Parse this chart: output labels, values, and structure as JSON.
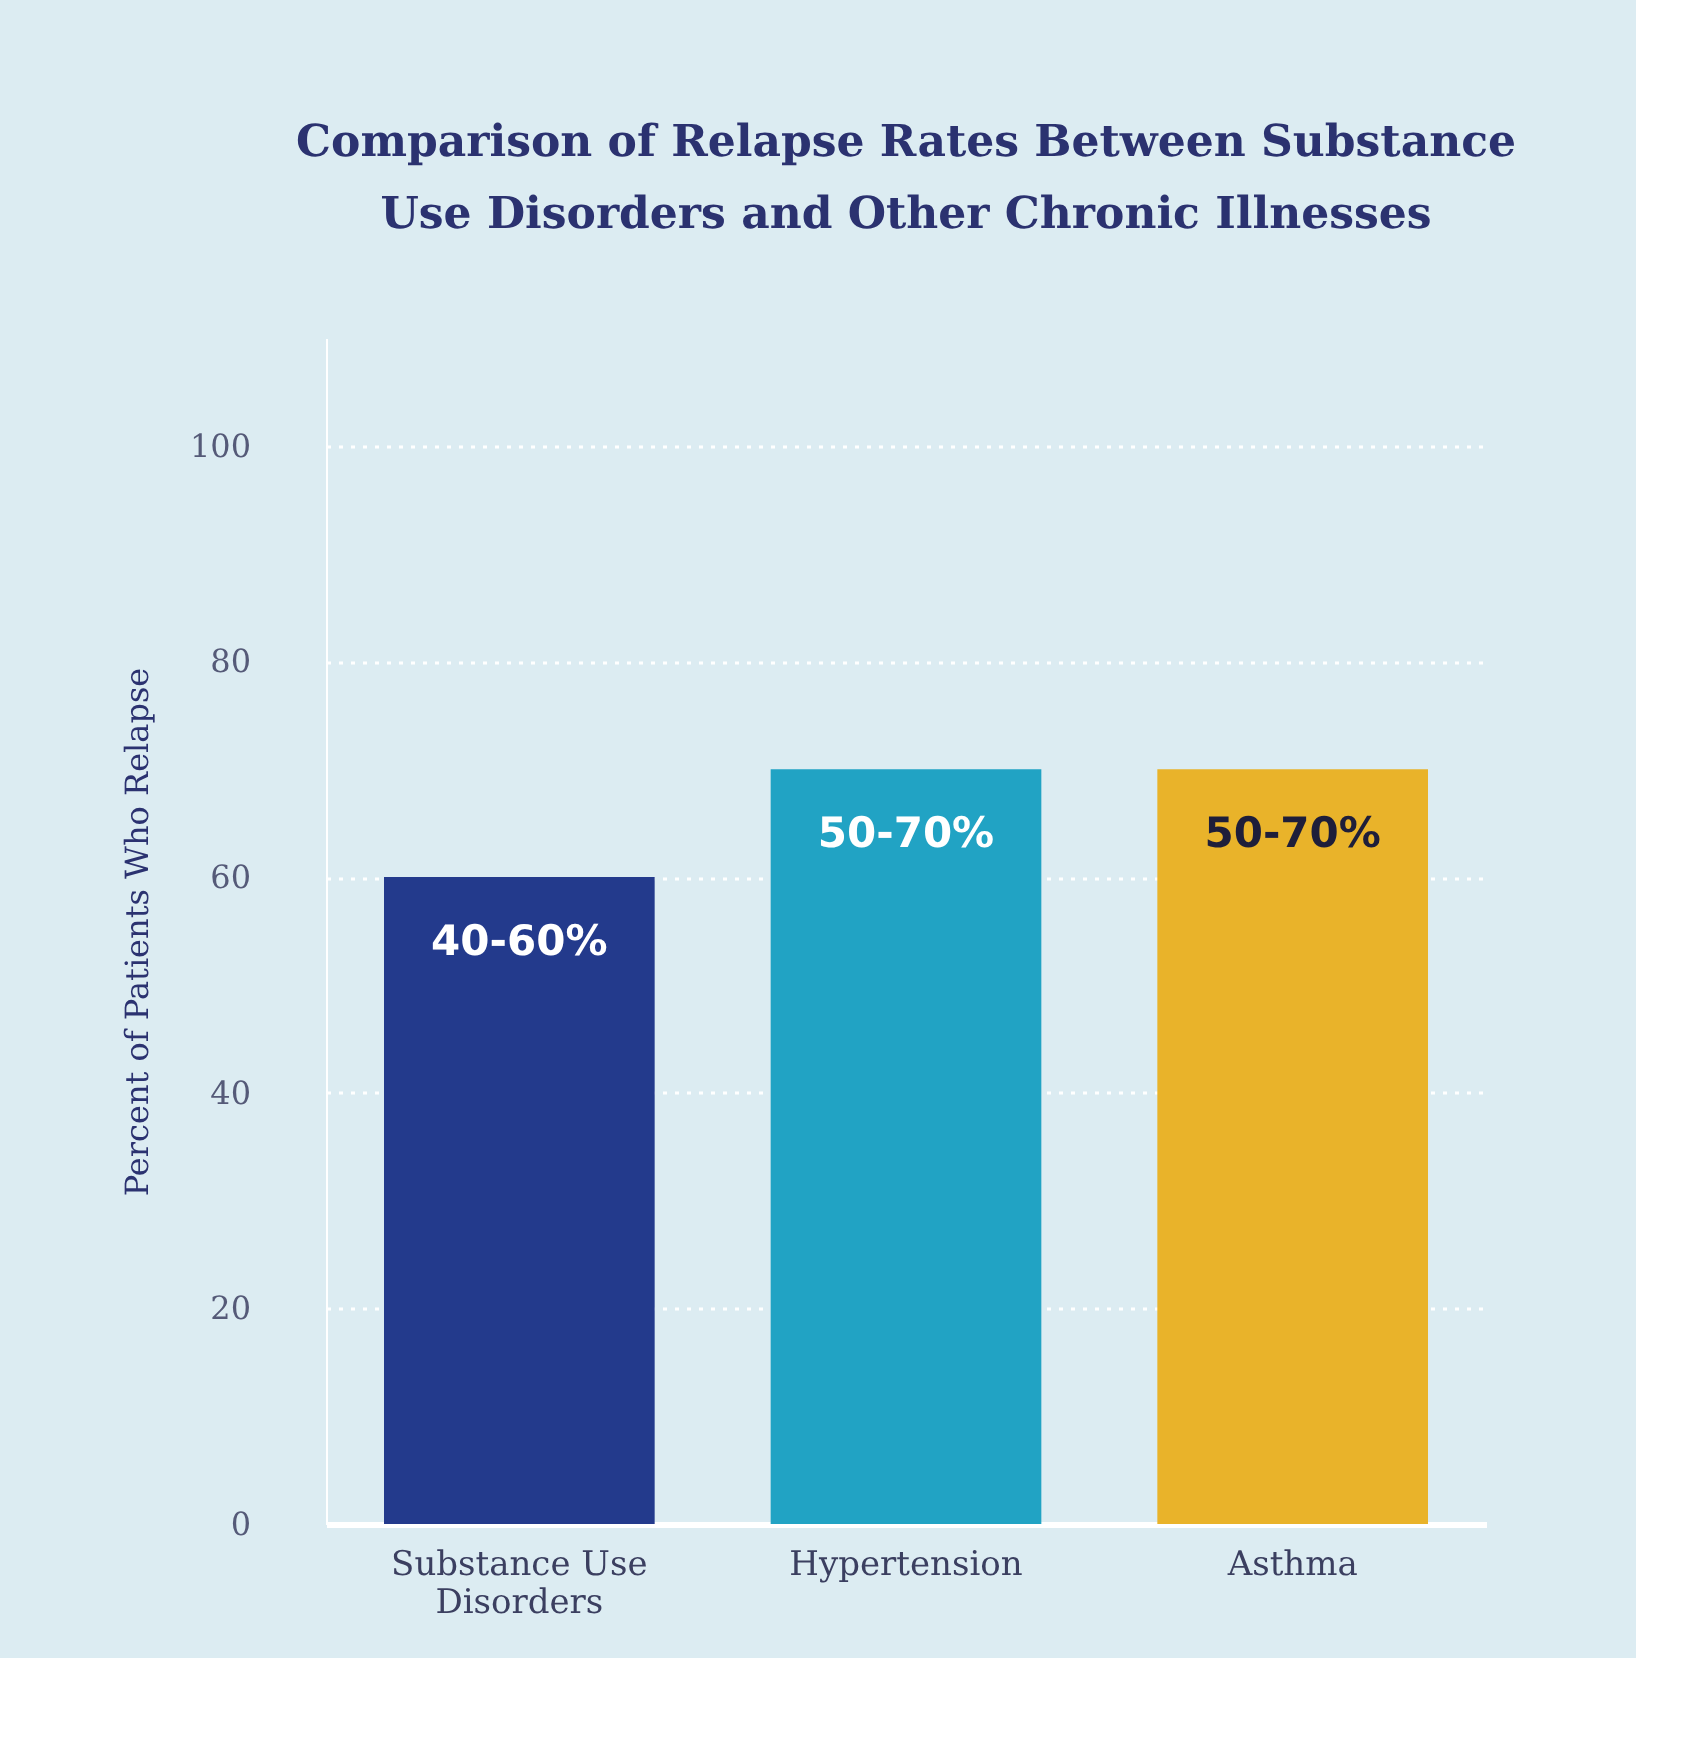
{
  "chart_data": {
    "type": "bar",
    "title": "Comparison of Relapse Rates Between Substance Use Disorders and Other Chronic Illnesses",
    "ylabel": "Percent of Patients Who Relapse",
    "categories": [
      "Substance Use Disorders",
      "Hypertension",
      "Asthma"
    ],
    "values": [
      60,
      70,
      70
    ],
    "colors": [
      "#233a8c",
      "#21a3c4",
      "#e9b32a"
    ],
    "annotations": [
      {
        "text": "40-60%",
        "x": "Substance Use Disorders",
        "y": 60
      },
      {
        "text": "50-70%",
        "x": "Hypertension",
        "y": 70
      },
      {
        "text": "50-70%",
        "x": "Asthma",
        "y": 70
      }
    ],
    "ylim": [
      0,
      110
    ],
    "yticks": [
      0,
      20,
      40,
      60,
      80,
      100
    ],
    "grid": "y"
  }
}
